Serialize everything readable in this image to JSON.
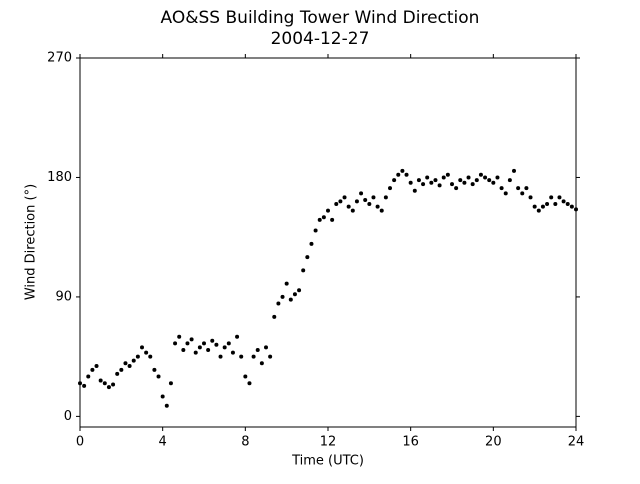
{
  "chart_data": {
    "type": "scatter",
    "title": "AO&SS Building Tower Wind Direction",
    "subtitle": "2004-12-27",
    "x_label": "Time (UTC)",
    "y_label": "Wind Direction (°)",
    "xlim": [
      0,
      24
    ],
    "xticks": [
      0,
      4,
      8,
      12,
      16,
      20,
      24
    ],
    "ylim": [
      -8,
      270
    ],
    "yticks": [
      0,
      90,
      180,
      270
    ],
    "color": "#000000",
    "x": [
      0,
      0.2,
      0.4,
      0.6,
      0.8,
      1.0,
      1.2,
      1.4,
      1.6,
      1.8,
      2.0,
      2.2,
      2.4,
      2.6,
      2.8,
      3.0,
      3.2,
      3.4,
      3.6,
      3.8,
      4.0,
      4.2,
      4.4,
      4.6,
      4.8,
      5.0,
      5.2,
      5.4,
      5.6,
      5.8,
      6.0,
      6.2,
      6.4,
      6.6,
      6.8,
      7.0,
      7.2,
      7.4,
      7.6,
      7.8,
      8.0,
      8.2,
      8.4,
      8.6,
      8.8,
      9.0,
      9.2,
      9.4,
      9.6,
      9.8,
      10.0,
      10.2,
      10.4,
      10.6,
      10.8,
      11.0,
      11.2,
      11.4,
      11.6,
      11.8,
      12.0,
      12.2,
      12.4,
      12.6,
      12.8,
      13.0,
      13.2,
      13.4,
      13.6,
      13.8,
      14.0,
      14.2,
      14.4,
      14.6,
      14.8,
      15.0,
      15.2,
      15.4,
      15.6,
      15.8,
      16.0,
      16.2,
      16.4,
      16.6,
      16.8,
      17.0,
      17.2,
      17.4,
      17.6,
      17.8,
      18.0,
      18.2,
      18.4,
      18.6,
      18.8,
      19.0,
      19.2,
      19.4,
      19.6,
      19.8,
      20.0,
      20.2,
      20.4,
      20.6,
      20.8,
      21.0,
      21.2,
      21.4,
      21.6,
      21.8,
      22.0,
      22.2,
      22.4,
      22.6,
      22.8,
      23.0,
      23.2,
      23.4,
      23.6,
      23.8,
      24.0
    ],
    "values": [
      25,
      23,
      30,
      35,
      38,
      27,
      25,
      22,
      24,
      32,
      35,
      40,
      38,
      42,
      45,
      52,
      48,
      45,
      35,
      30,
      15,
      8,
      25,
      55,
      60,
      50,
      55,
      58,
      48,
      52,
      55,
      50,
      57,
      54,
      45,
      52,
      55,
      48,
      60,
      45,
      30,
      25,
      45,
      50,
      40,
      52,
      45,
      75,
      85,
      90,
      100,
      88,
      92,
      95,
      110,
      120,
      130,
      140,
      148,
      150,
      155,
      148,
      160,
      162,
      165,
      158,
      155,
      162,
      168,
      163,
      160,
      165,
      158,
      155,
      165,
      172,
      178,
      182,
      185,
      182,
      176,
      170,
      178,
      175,
      180,
      176,
      178,
      174,
      180,
      182,
      175,
      172,
      178,
      176,
      180,
      175,
      178,
      182,
      180,
      178,
      176,
      180,
      172,
      168,
      178,
      185,
      172,
      168,
      172,
      165,
      158,
      155,
      158,
      160,
      165,
      160,
      165,
      162,
      160,
      158,
      156
    ]
  }
}
